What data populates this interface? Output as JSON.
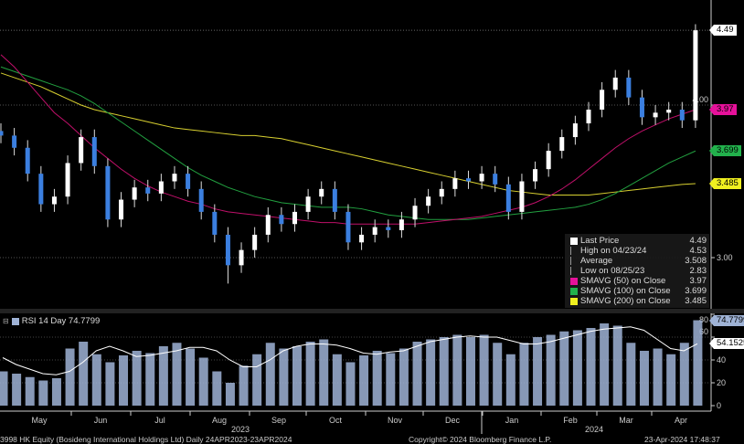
{
  "chart_data": [
    {
      "type": "candlestick",
      "title": "",
      "week_start_dates": [
        "2023-04-24",
        "2023-05-01",
        "2023-05-08",
        "2023-05-15",
        "2023-05-22",
        "2023-05-29",
        "2023-06-05",
        "2023-06-12",
        "2023-06-19",
        "2023-06-26",
        "2023-07-03",
        "2023-07-10",
        "2023-07-17",
        "2023-07-24",
        "2023-07-31",
        "2023-08-07",
        "2023-08-14",
        "2023-08-21",
        "2023-08-28",
        "2023-09-04",
        "2023-09-11",
        "2023-09-18",
        "2023-09-25",
        "2023-10-02",
        "2023-10-09",
        "2023-10-16",
        "2023-10-23",
        "2023-10-30",
        "2023-11-06",
        "2023-11-13",
        "2023-11-20",
        "2023-11-27",
        "2023-12-04",
        "2023-12-11",
        "2023-12-18",
        "2023-12-25",
        "2024-01-01",
        "2024-01-08",
        "2024-01-15",
        "2024-01-22",
        "2024-01-29",
        "2024-02-05",
        "2024-02-12",
        "2024-02-19",
        "2024-02-26",
        "2024-03-04",
        "2024-03-11",
        "2024-03-18",
        "2024-03-25",
        "2024-04-01",
        "2024-04-08",
        "2024-04-15",
        "2024-04-22"
      ],
      "close": [
        3.8,
        3.72,
        3.55,
        3.35,
        3.4,
        3.62,
        3.79,
        3.6,
        3.25,
        3.38,
        3.46,
        3.42,
        3.5,
        3.55,
        3.45,
        3.3,
        3.15,
        2.95,
        3.05,
        3.15,
        3.28,
        3.22,
        3.3,
        3.4,
        3.45,
        3.3,
        3.1,
        3.15,
        3.2,
        3.18,
        3.25,
        3.34,
        3.4,
        3.45,
        3.52,
        3.5,
        3.55,
        3.48,
        3.3,
        3.5,
        3.58,
        3.7,
        3.79,
        3.88,
        3.97,
        4.1,
        4.18,
        4.05,
        3.92,
        3.95,
        3.97,
        3.9,
        4.49
      ],
      "sma50": [
        4.33,
        4.25,
        4.15,
        4.05,
        3.95,
        3.88,
        3.8,
        3.72,
        3.65,
        3.58,
        3.52,
        3.47,
        3.43,
        3.4,
        3.37,
        3.35,
        3.32,
        3.3,
        3.29,
        3.28,
        3.27,
        3.26,
        3.25,
        3.24,
        3.23,
        3.23,
        3.22,
        3.22,
        3.22,
        3.22,
        3.22,
        3.22,
        3.23,
        3.24,
        3.25,
        3.26,
        3.27,
        3.29,
        3.31,
        3.33,
        3.36,
        3.4,
        3.45,
        3.51,
        3.58,
        3.65,
        3.72,
        3.78,
        3.83,
        3.87,
        3.91,
        3.94,
        3.97
      ],
      "sma100": [
        4.25,
        4.22,
        4.19,
        4.16,
        4.13,
        4.1,
        4.06,
        4.01,
        3.95,
        3.89,
        3.83,
        3.77,
        3.71,
        3.65,
        3.59,
        3.54,
        3.5,
        3.46,
        3.43,
        3.4,
        3.38,
        3.36,
        3.35,
        3.34,
        3.33,
        3.33,
        3.33,
        3.32,
        3.3,
        3.28,
        3.27,
        3.26,
        3.25,
        3.25,
        3.25,
        3.25,
        3.26,
        3.27,
        3.28,
        3.29,
        3.3,
        3.31,
        3.32,
        3.33,
        3.35,
        3.38,
        3.42,
        3.47,
        3.52,
        3.57,
        3.62,
        3.66,
        3.699
      ],
      "sma200": [
        4.21,
        4.18,
        4.15,
        4.12,
        4.08,
        4.04,
        4.0,
        3.97,
        3.95,
        3.93,
        3.91,
        3.89,
        3.87,
        3.85,
        3.84,
        3.83,
        3.82,
        3.81,
        3.8,
        3.8,
        3.79,
        3.78,
        3.76,
        3.74,
        3.72,
        3.7,
        3.68,
        3.66,
        3.64,
        3.62,
        3.6,
        3.58,
        3.56,
        3.54,
        3.52,
        3.5,
        3.48,
        3.46,
        3.44,
        3.43,
        3.42,
        3.41,
        3.41,
        3.41,
        3.41,
        3.42,
        3.43,
        3.44,
        3.45,
        3.46,
        3.47,
        3.48,
        3.485
      ],
      "yaxis_ticks": [
        "3.00",
        "4.00"
      ],
      "ylim": [
        2.7,
        4.65
      ],
      "grid": true,
      "legend_position": "bottom-right",
      "legend": [
        {
          "label": "Last Price",
          "value": "4.49",
          "color": "#ffffff",
          "icon": "square"
        },
        {
          "label": "High on 04/23/24",
          "value": "4.53",
          "icon": "high-marker"
        },
        {
          "label": "Average",
          "value": "3.508",
          "icon": "average-marker"
        },
        {
          "label": "Low on 08/25/23",
          "value": "2.83",
          "icon": "low-marker"
        },
        {
          "label": "SMAVG (50)  on Close",
          "value": "3.97",
          "color": "#e6119a"
        },
        {
          "label": "SMAVG (100)  on Close",
          "value": "3.699",
          "color": "#22b14c"
        },
        {
          "label": "SMAVG (200)  on Close",
          "value": "3.485",
          "color": "#f0f020"
        }
      ],
      "price_tags": [
        {
          "value": "4.49",
          "color": "#ffffff"
        },
        {
          "value": "3.97",
          "color": "#e6119a"
        },
        {
          "value": "3.699",
          "color": "#22b14c"
        },
        {
          "value": "3.485",
          "color": "#f0f020"
        }
      ]
    },
    {
      "type": "bar",
      "title": "RSI 14 Day 74.7799",
      "rsi": [
        30,
        28,
        25,
        22,
        24,
        50,
        56,
        45,
        38,
        44,
        48,
        46,
        52,
        55,
        50,
        42,
        30,
        20,
        35,
        45,
        55,
        50,
        52,
        56,
        58,
        45,
        38,
        44,
        48,
        46,
        50,
        56,
        58,
        60,
        62,
        60,
        62,
        55,
        45,
        55,
        60,
        62,
        65,
        66,
        68,
        72,
        70,
        55,
        48,
        50,
        45,
        55,
        74.7799
      ],
      "rsi_ma": [
        42,
        36,
        32,
        28,
        27,
        30,
        38,
        48,
        52,
        48,
        43,
        44,
        46,
        48,
        51,
        51,
        48,
        40,
        34,
        34,
        40,
        48,
        52,
        54,
        54,
        53,
        50,
        46,
        45,
        47,
        48,
        52,
        56,
        58,
        60,
        61,
        60,
        60,
        57,
        54,
        54,
        56,
        59,
        62,
        65,
        67,
        68,
        69,
        66,
        58,
        50,
        48,
        54.1525
      ],
      "yaxis_ticks": [
        "0",
        "20",
        "40",
        "60",
        "80"
      ],
      "ylim": [
        0,
        80
      ],
      "tags": [
        {
          "value": "74.7799",
          "color": "#9fb3d6"
        },
        {
          "value": "54.1525",
          "color": "#ffffff"
        }
      ],
      "bar_color": "#9fb3d6"
    }
  ],
  "x_axis": {
    "months": [
      "May",
      "Jun",
      "Jul",
      "Aug",
      "Sep",
      "Oct",
      "Nov",
      "Dec",
      "Jan",
      "Feb",
      "Mar",
      "Apr"
    ],
    "years": [
      "2023",
      "2024"
    ]
  },
  "footer": {
    "security": "3998 HK Equity (Bosideng International Holdings Ltd)  Daily 24APR2023-23APR2024",
    "copyright": "Copyright© 2024 Bloomberg Finance L.P.",
    "timestamp": "23-Apr-2024 17:48:37"
  }
}
